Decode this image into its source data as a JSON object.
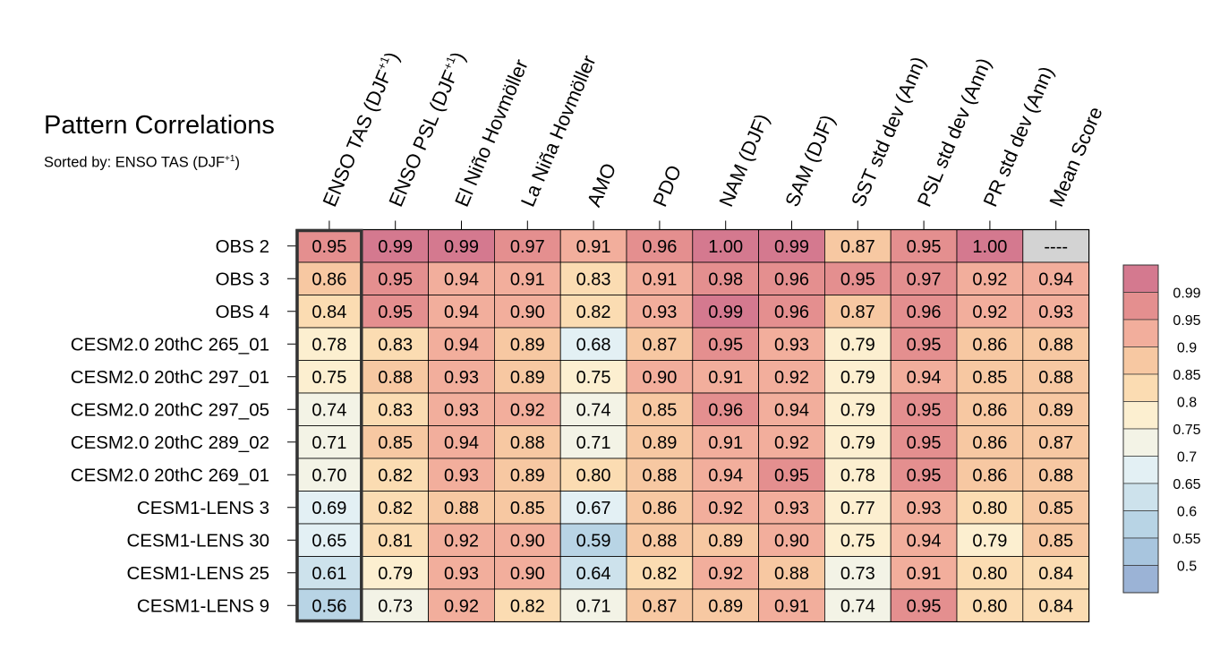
{
  "header": {
    "title": "Pattern Correlations",
    "subtitle_prefix": "Sorted by: ENSO TAS (DJF",
    "subtitle_sup": "+1",
    "subtitle_suffix": ")"
  },
  "chart_data": {
    "type": "heatmap",
    "title": "Pattern Correlations",
    "subtitle": "Sorted by: ENSO TAS (DJF+1)",
    "columns": [
      {
        "label": "ENSO TAS (DJF",
        "sup": "+1",
        "suffix": ")"
      },
      {
        "label": "ENSO PSL (DJF",
        "sup": "+1",
        "suffix": ")"
      },
      {
        "label": "El Niño Hovmöller"
      },
      {
        "label": "La Niña Hovmöller"
      },
      {
        "label": "AMO"
      },
      {
        "label": "PDO"
      },
      {
        "label": "NAM (DJF)"
      },
      {
        "label": "SAM (DJF)"
      },
      {
        "label": "SST std dev (Ann)"
      },
      {
        "label": "PSL std dev (Ann)"
      },
      {
        "label": "PR std dev (Ann)"
      },
      {
        "label": "Mean Score"
      }
    ],
    "rows": [
      {
        "label": "OBS 2",
        "values": [
          "0.95",
          "0.99",
          "0.99",
          "0.97",
          "0.91",
          "0.96",
          "1.00",
          "0.99",
          "0.87",
          "0.95",
          "1.00",
          "----"
        ]
      },
      {
        "label": "OBS 3",
        "values": [
          "0.86",
          "0.95",
          "0.94",
          "0.91",
          "0.83",
          "0.91",
          "0.98",
          "0.96",
          "0.95",
          "0.97",
          "0.92",
          "0.94"
        ]
      },
      {
        "label": "OBS 4",
        "values": [
          "0.84",
          "0.95",
          "0.94",
          "0.90",
          "0.82",
          "0.93",
          "0.99",
          "0.96",
          "0.87",
          "0.96",
          "0.92",
          "0.93"
        ]
      },
      {
        "label": "CESM2.0 20thC 265_01",
        "values": [
          "0.78",
          "0.83",
          "0.94",
          "0.89",
          "0.68",
          "0.87",
          "0.95",
          "0.93",
          "0.79",
          "0.95",
          "0.86",
          "0.88"
        ]
      },
      {
        "label": "CESM2.0 20thC 297_01",
        "values": [
          "0.75",
          "0.88",
          "0.93",
          "0.89",
          "0.75",
          "0.90",
          "0.91",
          "0.92",
          "0.79",
          "0.94",
          "0.85",
          "0.88"
        ]
      },
      {
        "label": "CESM2.0 20thC 297_05",
        "values": [
          "0.74",
          "0.83",
          "0.93",
          "0.92",
          "0.74",
          "0.85",
          "0.96",
          "0.94",
          "0.79",
          "0.95",
          "0.86",
          "0.89"
        ]
      },
      {
        "label": "CESM2.0 20thC 289_02",
        "values": [
          "0.71",
          "0.85",
          "0.94",
          "0.88",
          "0.71",
          "0.89",
          "0.91",
          "0.92",
          "0.79",
          "0.95",
          "0.86",
          "0.87"
        ]
      },
      {
        "label": "CESM2.0 20thC 269_01",
        "values": [
          "0.70",
          "0.82",
          "0.93",
          "0.89",
          "0.80",
          "0.88",
          "0.94",
          "0.95",
          "0.78",
          "0.95",
          "0.86",
          "0.88"
        ]
      },
      {
        "label": "CESM1-LENS 3",
        "values": [
          "0.69",
          "0.82",
          "0.88",
          "0.85",
          "0.67",
          "0.86",
          "0.92",
          "0.93",
          "0.77",
          "0.93",
          "0.80",
          "0.85"
        ]
      },
      {
        "label": "CESM1-LENS 30",
        "values": [
          "0.65",
          "0.81",
          "0.92",
          "0.90",
          "0.59",
          "0.88",
          "0.89",
          "0.90",
          "0.75",
          "0.94",
          "0.79",
          "0.85"
        ]
      },
      {
        "label": "CESM1-LENS 25",
        "values": [
          "0.61",
          "0.79",
          "0.93",
          "0.90",
          "0.64",
          "0.82",
          "0.92",
          "0.88",
          "0.73",
          "0.91",
          "0.80",
          "0.84"
        ]
      },
      {
        "label": "CESM1-LENS 9",
        "values": [
          "0.56",
          "0.73",
          "0.92",
          "0.82",
          "0.71",
          "0.87",
          "0.89",
          "0.91",
          "0.74",
          "0.95",
          "0.80",
          "0.84"
        ]
      }
    ],
    "missing_color": "#d3d3d3",
    "highlight_column": 0,
    "colorbar": {
      "tick_labels": [
        "0.99",
        "0.95",
        "0.9",
        "0.85",
        "0.8",
        "0.75",
        "0.7",
        "0.65",
        "0.6",
        "0.55",
        "0.5"
      ],
      "bins": [
        {
          "min": 0.99,
          "color": "#d4798f"
        },
        {
          "min": 0.95,
          "color": "#e48f8f"
        },
        {
          "min": 0.9,
          "color": "#f2ae9c"
        },
        {
          "min": 0.85,
          "color": "#f7c8a2"
        },
        {
          "min": 0.8,
          "color": "#fbdcb2"
        },
        {
          "min": 0.75,
          "color": "#fcefd0"
        },
        {
          "min": 0.7,
          "color": "#f3f3e6"
        },
        {
          "min": 0.65,
          "color": "#e3f0f4"
        },
        {
          "min": 0.6,
          "color": "#cde2ec"
        },
        {
          "min": 0.55,
          "color": "#b8d4e5"
        },
        {
          "min": 0.5,
          "color": "#a8c5de"
        },
        {
          "min": 0.0,
          "color": "#9bb3d6"
        }
      ]
    }
  }
}
